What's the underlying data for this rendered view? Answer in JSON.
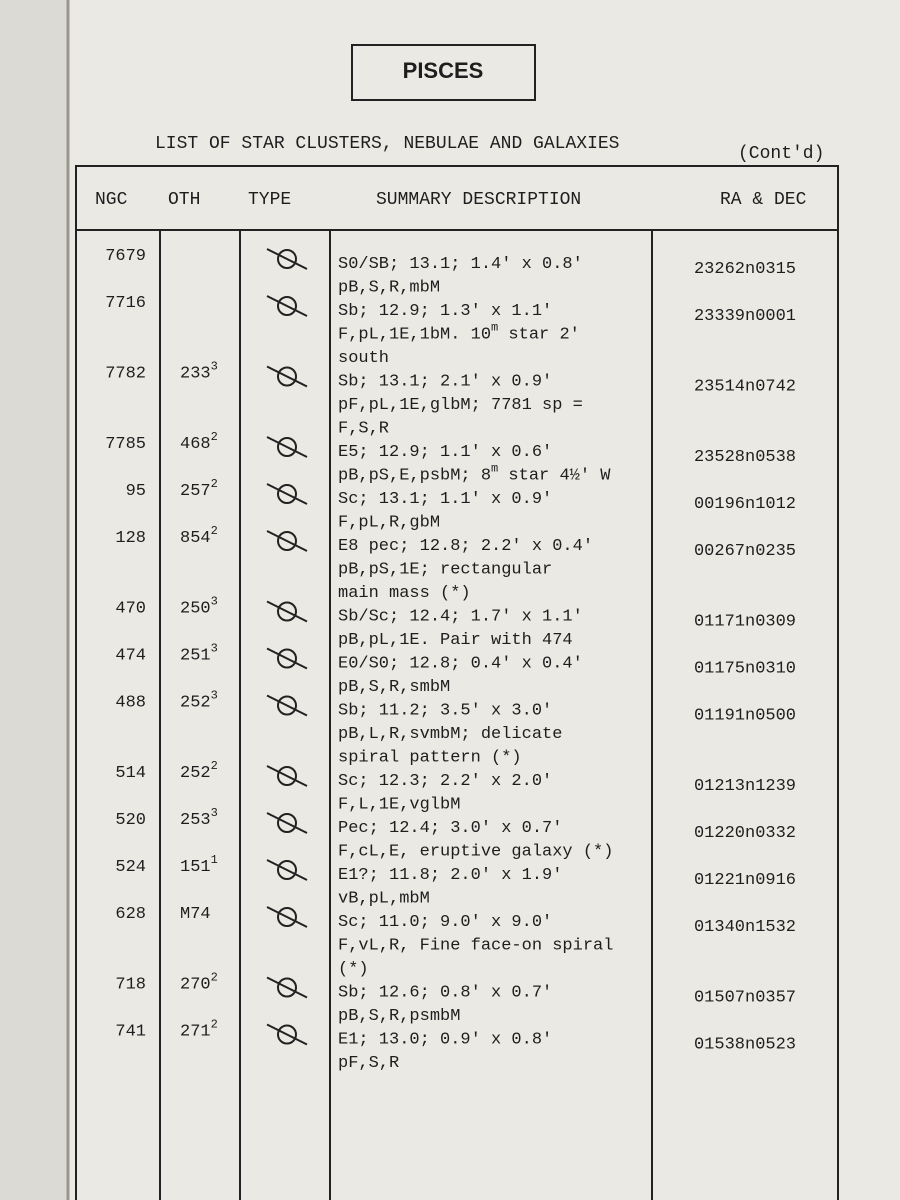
{
  "header": {
    "title": "PISCES",
    "subtitle": "LIST OF STAR CLUSTERS, NEBULAE AND GALAXIES",
    "note": "(Cont'd)"
  },
  "table": {
    "columns": [
      "NGC",
      "OTH",
      "TYPE",
      "SUMMARY DESCRIPTION",
      "RA & DEC"
    ],
    "rows": [
      {
        "ngc": "7679",
        "oth": "",
        "desc": [
          "S0/SB; 13.1; 1.4' x 0.8'",
          "pB,S,R,mbM"
        ],
        "ra": "23262n0315"
      },
      {
        "ngc": "7716",
        "oth": "",
        "desc": [
          "Sb; 12.9; 1.3' x 1.1'",
          {
            "text": "F,pL,1E,1bM.  10",
            "sup": "m",
            "rest": " star 2'"
          },
          "south"
        ],
        "ra": "23339n0001"
      },
      {
        "ngc": "7782",
        "oth": "233",
        "oth_sup": "3",
        "desc": [
          "Sb; 13.1; 2.1' x 0.9'",
          "pF,pL,1E,glbM; 7781 sp =",
          "F,S,R"
        ],
        "ra": "23514n0742"
      },
      {
        "ngc": "7785",
        "oth": "468",
        "oth_sup": "2",
        "desc": [
          "E5; 12.9; 1.1' x 0.6'",
          {
            "text": "pB,pS,E,psbM; 8",
            "sup": "m",
            "rest": " star 4½' W"
          }
        ],
        "ra": "23528n0538"
      },
      {
        "ngc": "95",
        "oth": "257",
        "oth_sup": "2",
        "desc": [
          "Sc; 13.1; 1.1' x 0.9'",
          "F,pL,R,gbM"
        ],
        "ra": "00196n1012"
      },
      {
        "ngc": "128",
        "oth": "854",
        "oth_sup": "2",
        "desc": [
          "E8 pec; 12.8; 2.2' x 0.4'",
          "pB,pS,1E; rectangular",
          "main mass  (*)"
        ],
        "ra": "00267n0235"
      },
      {
        "ngc": "470",
        "oth": "250",
        "oth_sup": "3",
        "desc": [
          "Sb/Sc; 12.4; 1.7' x 1.1'",
          "pB,pL,1E. Pair with 474"
        ],
        "ra": "01171n0309"
      },
      {
        "ngc": "474",
        "oth": "251",
        "oth_sup": "3",
        "desc": [
          "E0/S0; 12.8; 0.4' x 0.4'",
          "pB,S,R,smbM"
        ],
        "ra": "01175n0310"
      },
      {
        "ngc": "488",
        "oth": "252",
        "oth_sup": "3",
        "desc": [
          "Sb; 11.2; 3.5' x 3.0'",
          "pB,L,R,svmbM; delicate",
          "spiral pattern  (*)"
        ],
        "ra": "01191n0500"
      },
      {
        "ngc": "514",
        "oth": "252",
        "oth_sup": "2",
        "desc": [
          "Sc; 12.3; 2.2' x 2.0'",
          "F,L,1E,vglbM"
        ],
        "ra": "01213n1239"
      },
      {
        "ngc": "520",
        "oth": "253",
        "oth_sup": "3",
        "desc": [
          "Pec; 12.4; 3.0' x 0.7'",
          "F,cL,E, eruptive galaxy (*)"
        ],
        "ra": "01220n0332"
      },
      {
        "ngc": "524",
        "oth": "151",
        "oth_sup": "1",
        "desc": [
          "E1?; 11.8; 2.0' x 1.9'",
          "vB,pL,mbM"
        ],
        "ra": "01221n0916"
      },
      {
        "ngc": "628",
        "oth": "M74",
        "desc": [
          "Sc; 11.0; 9.0' x 9.0'",
          "F,vL,R, Fine face-on spiral",
          "(*)"
        ],
        "ra": "01340n1532"
      },
      {
        "ngc": "718",
        "oth": "270",
        "oth_sup": "2",
        "desc": [
          "Sb; 12.6; 0.8' x 0.7'",
          "pB,S,R,psmbM"
        ],
        "ra": "01507n0357"
      },
      {
        "ngc": "741",
        "oth": "271",
        "oth_sup": "2",
        "desc": [
          "E1; 13.0; 0.9' x 0.8'",
          "pF,S,R"
        ],
        "ra": "01538n0523"
      }
    ]
  }
}
